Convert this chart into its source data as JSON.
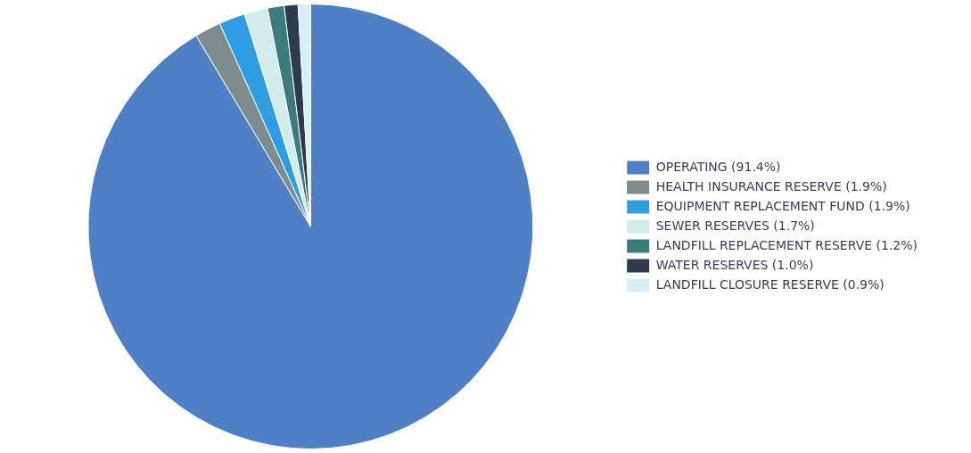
{
  "chart_data": {
    "type": "pie",
    "categories": [
      "OPERATING (91.4%)",
      "HEALTH INSURANCE RESERVE (1.9%)",
      "EQUIPMENT REPLACEMENT FUND (1.9%)",
      "SEWER RESERVES (1.7%)",
      "LANDFILL REPLACEMENT RESERVE (1.2%)",
      "WATER RESERVES (1.0%)",
      "LANDFILL CLOSURE RESERVE (0.9%)"
    ],
    "values": [
      91.4,
      1.9,
      1.9,
      1.7,
      1.2,
      1.0,
      0.9
    ],
    "colors": [
      "#4f80c6",
      "#7d8c8c",
      "#2f9de2",
      "#d2ecec",
      "#3c7c7c",
      "#2c3c4c",
      "#d6f0f8"
    ],
    "legend": "right"
  }
}
